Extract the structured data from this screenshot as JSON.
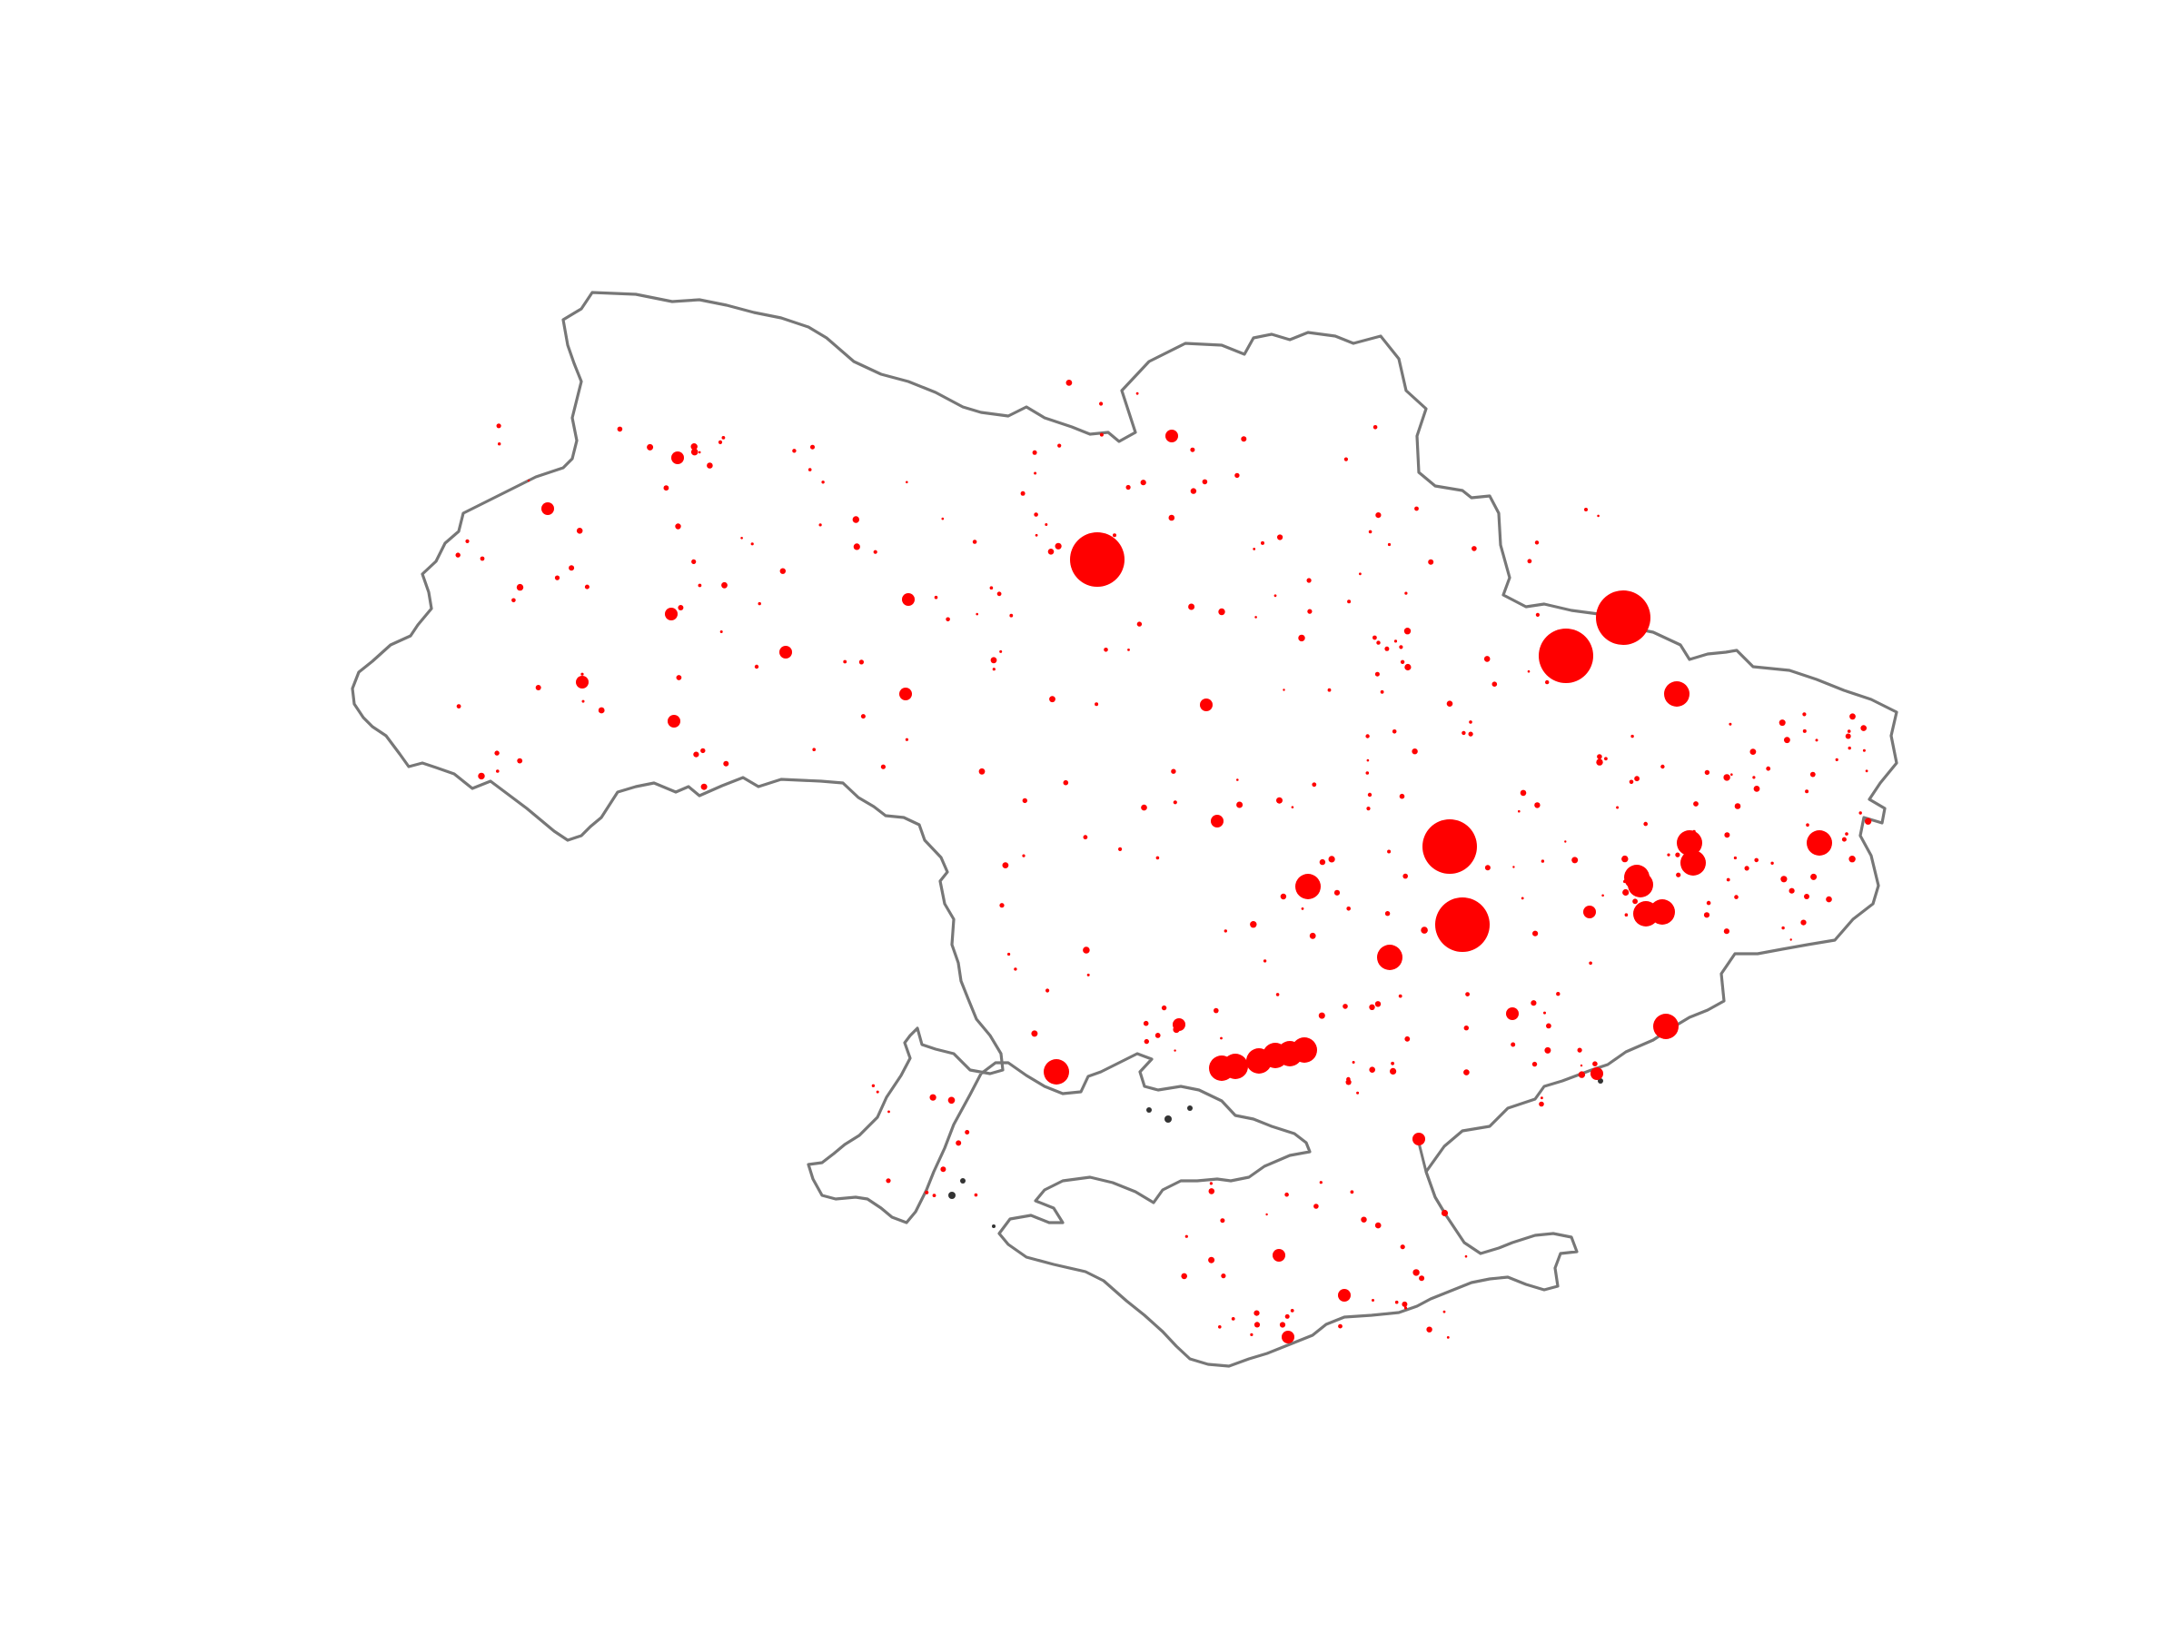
{
  "map": {
    "region": "Ukraine",
    "boundary_color": "#777777",
    "marker_color": "#ff0000",
    "background_color": "#ffffff",
    "markers": [
      {
        "id": "kyiv",
        "r": 3
      },
      {
        "id": "kharkiv",
        "r": 3
      },
      {
        "id": "kharkiv-west",
        "r": 3
      },
      {
        "id": "dnipro",
        "r": 3
      },
      {
        "id": "zaporizhzhia",
        "r": 3
      },
      {
        "id": "kryvyi-rih",
        "r": 2
      },
      {
        "id": "mariupol",
        "r": 2
      },
      {
        "id": "odesa",
        "r": 2
      },
      {
        "id": "kherson-coast-1",
        "r": 2
      },
      {
        "id": "kherson-coast-2",
        "r": 2
      },
      {
        "id": "kherson-coast-3",
        "r": 2
      },
      {
        "id": "kherson-coast-4",
        "r": 2
      },
      {
        "id": "kherson-coast-5",
        "r": 2
      },
      {
        "id": "kherson-coast-6",
        "r": 2
      },
      {
        "id": "donetsk-1",
        "r": 2
      },
      {
        "id": "donetsk-2",
        "r": 2
      },
      {
        "id": "donetsk-3",
        "r": 2
      },
      {
        "id": "donetsk-4",
        "r": 2
      },
      {
        "id": "donetsk-5",
        "r": 2
      },
      {
        "id": "donetsk-6",
        "r": 2
      },
      {
        "id": "luhansk",
        "r": 2
      },
      {
        "id": "sloviansk",
        "r": 2
      },
      {
        "id": "poltava",
        "r": 2
      },
      {
        "id": "sumy",
        "r": 1
      },
      {
        "id": "lutsk",
        "r": 1
      },
      {
        "id": "rivne",
        "r": 1
      },
      {
        "id": "lviv",
        "r": 1
      },
      {
        "id": "ternopil",
        "r": 1
      },
      {
        "id": "ivano-frankivsk",
        "r": 1
      },
      {
        "id": "khmelnytskyi",
        "r": 1
      },
      {
        "id": "zhytomyr",
        "r": 1
      },
      {
        "id": "vinnytsia",
        "r": 1
      },
      {
        "id": "chernihiv",
        "r": 1
      },
      {
        "id": "cherkasy",
        "r": 1
      },
      {
        "id": "kropyvnytskyi",
        "r": 1
      },
      {
        "id": "mykolaiv",
        "r": 1
      },
      {
        "id": "simferopol",
        "r": 1
      },
      {
        "id": "sevastopol",
        "r": 1
      },
      {
        "id": "kerch",
        "r": 1
      },
      {
        "id": "yalta",
        "r": 1
      },
      {
        "id": "berdiansk",
        "r": 1
      },
      {
        "id": "melitopol",
        "r": 1
      }
    ]
  }
}
